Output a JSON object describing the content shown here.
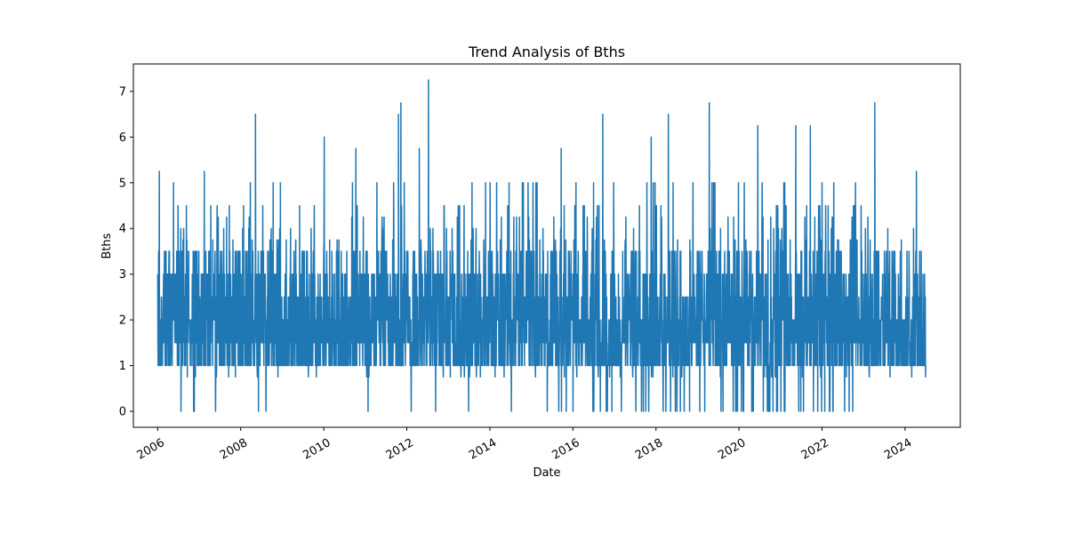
{
  "chart_data": {
    "type": "line",
    "title": "Trend Analysis of Bths",
    "xlabel": "Date",
    "ylabel": "Bths",
    "x_range": [
      "2005-06-01",
      "2025-05-01"
    ],
    "x_data_range": [
      "2006-01-01",
      "2024-07-01"
    ],
    "ylim": [
      -0.35,
      7.6
    ],
    "x_ticks": [
      "2006",
      "2008",
      "2010",
      "2012",
      "2014",
      "2016",
      "2018",
      "2020",
      "2022",
      "2024"
    ],
    "y_ticks": [
      "0",
      "1",
      "2",
      "3",
      "4",
      "5",
      "6",
      "7"
    ],
    "grid": false,
    "legend": "none",
    "color": "#1f77b4",
    "series": [
      {
        "values_description_note": "",
        "peaks": [
          {
            "x": "2006-01-15",
            "y": 5.25
          },
          {
            "x": "2007-02-15",
            "y": 5.25
          },
          {
            "x": "2008-05-10",
            "y": 6.5
          },
          {
            "x": "2010-01-05",
            "y": 6.0
          },
          {
            "x": "2010-10-10",
            "y": 5.75
          },
          {
            "x": "2011-10-20",
            "y": 6.5
          },
          {
            "x": "2011-11-10",
            "y": 6.75
          },
          {
            "x": "2012-04-20",
            "y": 5.75
          },
          {
            "x": "2012-07-10",
            "y": 7.25
          },
          {
            "x": "2015-09-20",
            "y": 5.75
          },
          {
            "x": "2016-09-20",
            "y": 6.5
          },
          {
            "x": "2017-11-20",
            "y": 6.0
          },
          {
            "x": "2018-04-20",
            "y": 6.5
          },
          {
            "x": "2019-04-15",
            "y": 6.75
          },
          {
            "x": "2020-06-15",
            "y": 6.25
          },
          {
            "x": "2021-05-15",
            "y": 6.25
          },
          {
            "x": "2021-09-20",
            "y": 6.25
          },
          {
            "x": "2023-04-10",
            "y": 6.75
          },
          {
            "x": "2024-04-10",
            "y": 5.25
          }
        ],
        "low_segments": [
          {
            "from": "2016-01-01",
            "to": "2022-10-01",
            "y": 0
          }
        ]
      }
    ]
  }
}
